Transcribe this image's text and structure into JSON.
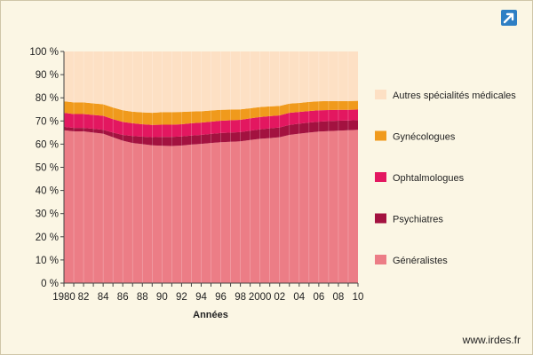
{
  "chart_data": {
    "type": "area",
    "stacked": true,
    "xlabel": "Années",
    "ylabel": "",
    "ylim": [
      0,
      100
    ],
    "yticks": [
      "0 %",
      "10 %",
      "20 %",
      "30 %",
      "40 %",
      "50 %",
      "60 %",
      "70 %",
      "80 %",
      "90 %",
      "100 %"
    ],
    "xticks": [
      "1980",
      "82",
      "84",
      "86",
      "88",
      "90",
      "92",
      "94",
      "96",
      "98",
      "2000",
      "02",
      "04",
      "06",
      "08",
      "10"
    ],
    "x": [
      1980,
      1981,
      1982,
      1983,
      1984,
      1985,
      1986,
      1987,
      1988,
      1989,
      1990,
      1991,
      1992,
      1993,
      1994,
      1995,
      1996,
      1997,
      1998,
      1999,
      2000,
      2001,
      2002,
      2003,
      2004,
      2005,
      2006,
      2007,
      2008,
      2009,
      2010
    ],
    "legend_position": "right",
    "series": [
      {
        "name": "Généralistes",
        "color": "#ec7d86",
        "values": [
          66,
          65.5,
          65.5,
          65,
          64.5,
          63,
          61.5,
          60.5,
          60,
          59.5,
          59.3,
          59.2,
          59.4,
          59.8,
          60.1,
          60.5,
          60.8,
          61,
          61.2,
          61.8,
          62.3,
          62.6,
          63,
          64,
          64.5,
          65,
          65.4,
          65.6,
          65.8,
          66,
          66.2
        ]
      },
      {
        "name": "Psychiatres",
        "color": "#a31240",
        "values": [
          1.5,
          1.5,
          1.5,
          1.6,
          1.7,
          2,
          2.5,
          3,
          3.2,
          3.5,
          3.8,
          3.9,
          3.9,
          3.9,
          3.9,
          3.9,
          4,
          4,
          4,
          4,
          4.1,
          4.2,
          4.2,
          4.3,
          4.3,
          4.3,
          4.3,
          4.3,
          4.3,
          4.2,
          4.2
        ]
      },
      {
        "name": "Ophtalmologues",
        "color": "#e31760",
        "values": [
          6,
          6,
          6,
          6,
          6,
          5.8,
          5.6,
          5.5,
          5.4,
          5.3,
          5.3,
          5.3,
          5.3,
          5.3,
          5.3,
          5.3,
          5.3,
          5.3,
          5.3,
          5.3,
          5.3,
          5.3,
          5.2,
          5.2,
          5.1,
          5,
          4.9,
          4.8,
          4.7,
          4.6,
          4.5
        ]
      },
      {
        "name": "Gynécologues",
        "color": "#f09a1c",
        "values": [
          5,
          5,
          5,
          5,
          5,
          5,
          5,
          5,
          5.1,
          5.2,
          5.4,
          5.4,
          5.3,
          5.1,
          4.9,
          4.8,
          4.7,
          4.6,
          4.5,
          4.4,
          4.3,
          4.2,
          4.1,
          4,
          3.9,
          3.9,
          3.9,
          3.9,
          3.8,
          3.8,
          3.8
        ]
      },
      {
        "name": "Autres spécialités médicales",
        "color": "#fde0c4",
        "values": [
          21.5,
          22,
          22,
          22.4,
          22.8,
          24.2,
          25.4,
          26,
          26.3,
          26.5,
          26.2,
          26.2,
          26.1,
          25.9,
          25.8,
          25.5,
          25.2,
          25.1,
          25,
          24.5,
          24,
          23.7,
          23.5,
          22.5,
          22.2,
          21.8,
          21.5,
          21.4,
          21.4,
          21.4,
          21.3
        ]
      }
    ]
  },
  "footer": {
    "source": "www.irdes.fr"
  },
  "toolbar": {
    "expand_icon": "expand-arrow-icon"
  }
}
